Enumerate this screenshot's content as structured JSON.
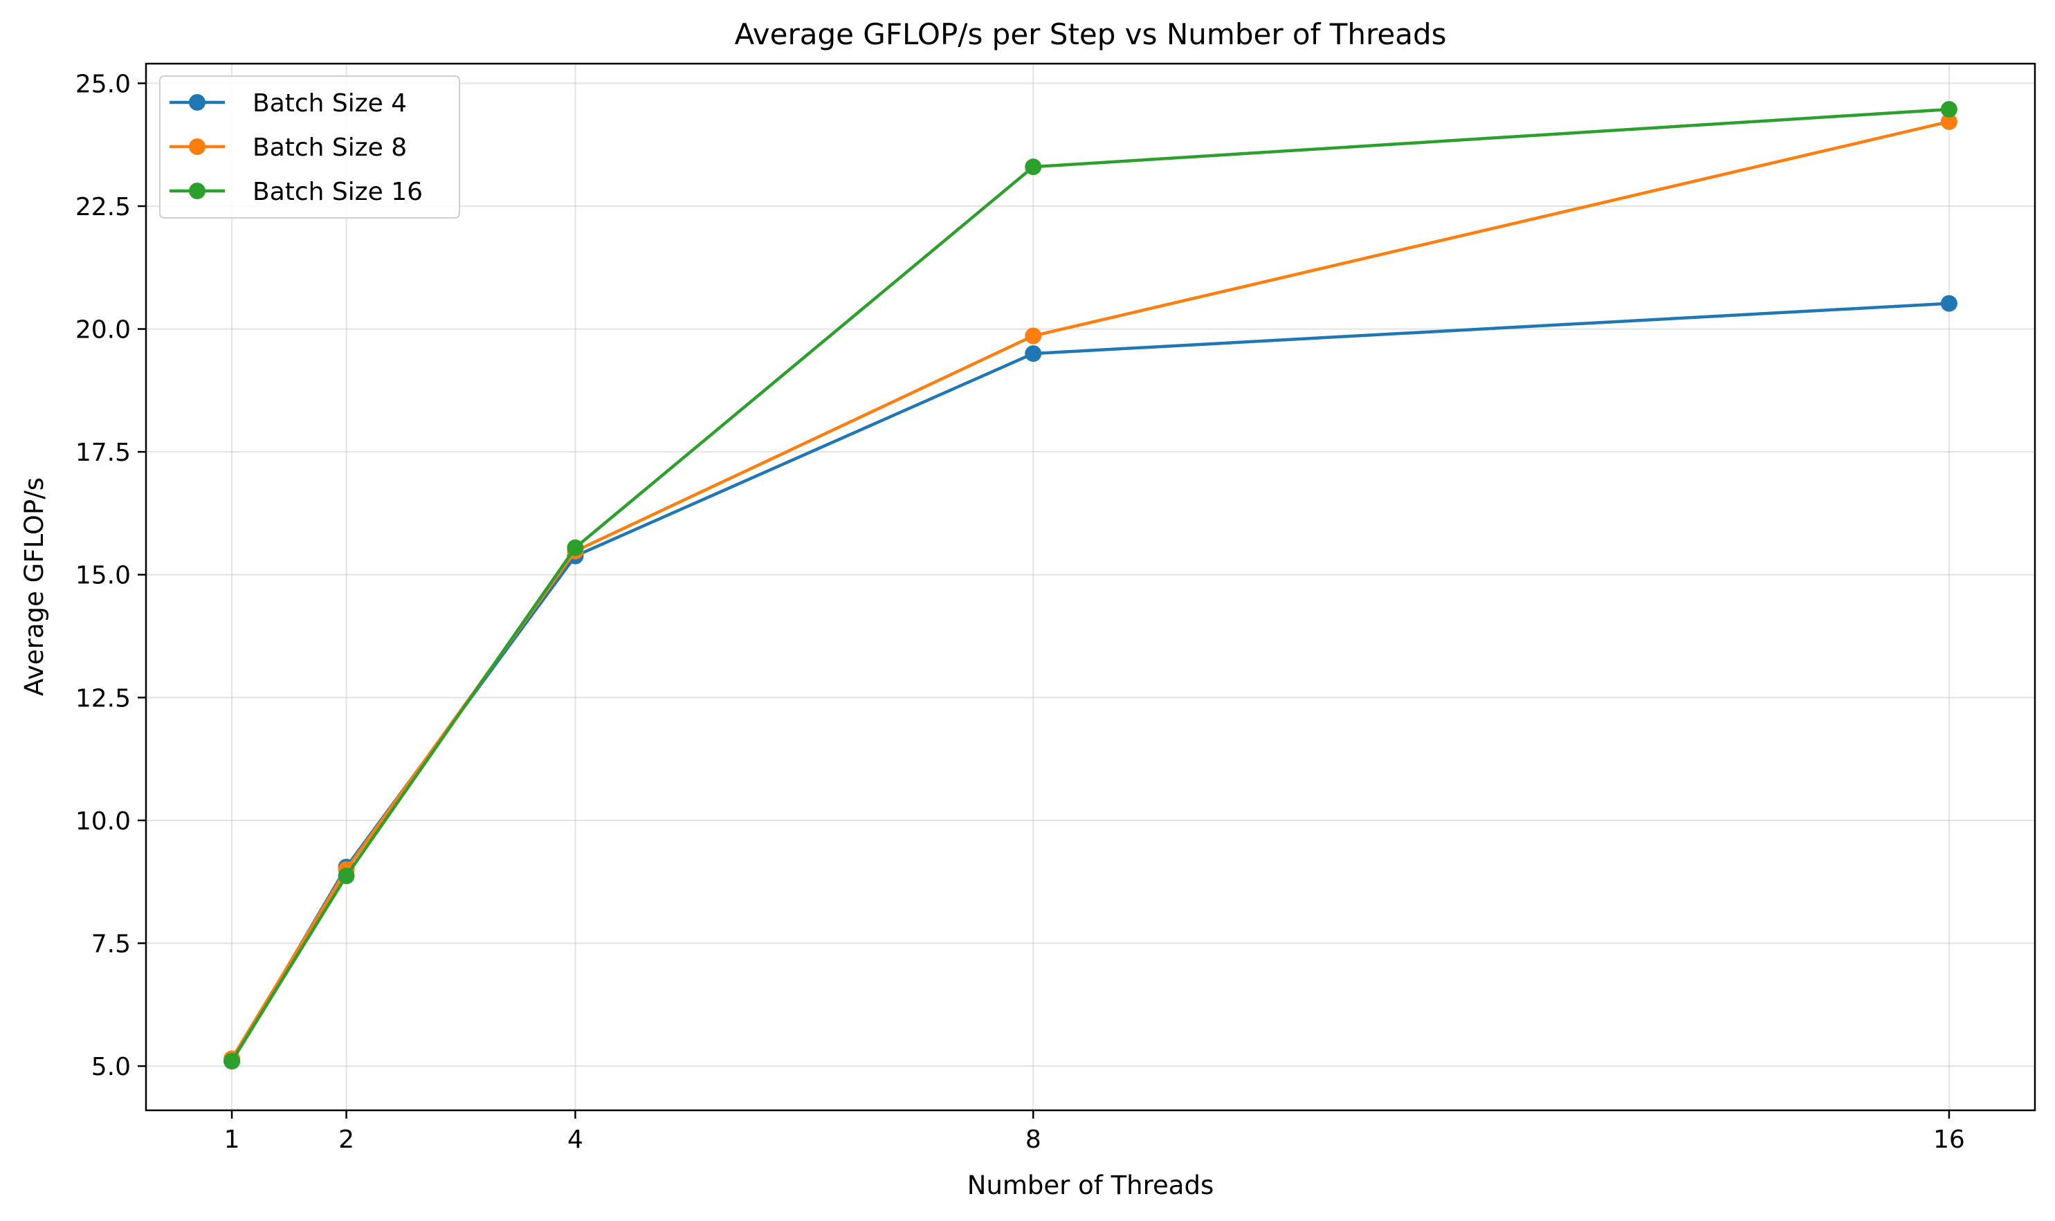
{
  "chart_data": {
    "type": "line",
    "title": "Average GFLOP/s per Step vs Number of Threads",
    "xlabel": "Number of Threads",
    "ylabel": "Average GFLOP/s",
    "x": [
      1,
      2,
      4,
      8,
      16
    ],
    "x_tick_labels": [
      "1",
      "2",
      "4",
      "8",
      "16"
    ],
    "xlim": [
      0.25,
      16.75
    ],
    "ylim": [
      4.1,
      25.4
    ],
    "y_ticks": [
      5.0,
      7.5,
      10.0,
      12.5,
      15.0,
      17.5,
      20.0,
      22.5,
      25.0
    ],
    "y_tick_labels": [
      "5.0",
      "7.5",
      "10.0",
      "12.5",
      "15.0",
      "17.5",
      "20.0",
      "22.5",
      "25.0"
    ],
    "grid": true,
    "legend_position": "top-left",
    "marker": "circle",
    "series": [
      {
        "name": "Batch Size 4",
        "color": "#1f77b4",
        "values": [
          5.1,
          9.05,
          15.38,
          19.5,
          20.52
        ]
      },
      {
        "name": "Batch Size 8",
        "color": "#ff7f0e",
        "values": [
          5.15,
          9.0,
          15.48,
          19.86,
          24.22
        ]
      },
      {
        "name": "Batch Size 16",
        "color": "#2ca02c",
        "values": [
          5.1,
          8.87,
          15.55,
          23.3,
          24.47
        ]
      }
    ]
  }
}
